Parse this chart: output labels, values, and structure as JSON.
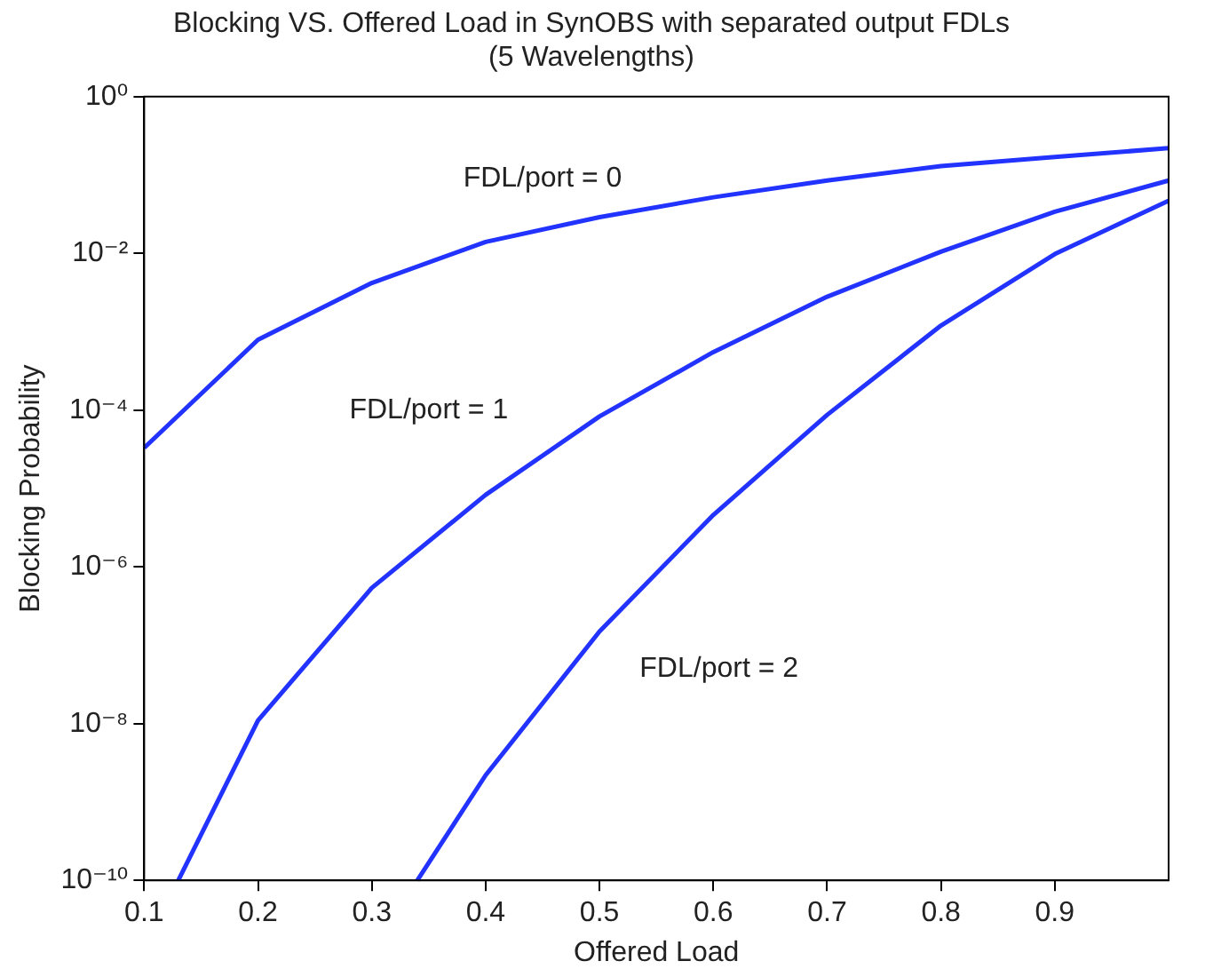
{
  "chart_data": {
    "type": "line",
    "title": "Blocking VS. Offered Load in SynOBS with separated output FDLs",
    "subtitle": "(5 Wavelengths)",
    "xlabel": "Offered Load",
    "ylabel": "Blocking Probability",
    "log": "y",
    "grid": false,
    "legend": false,
    "marker": "none",
    "line_style": "solid",
    "xlim": [
      0.1,
      1
    ],
    "xticks": [
      0.1,
      0.2,
      0.3,
      0.4,
      0.5,
      0.6,
      0.7,
      0.8,
      0.9
    ],
    "ylim": [
      1e-10,
      1
    ],
    "yticks": [
      {
        "value": 1,
        "label": "10⁰"
      },
      {
        "value": 0.01,
        "label": "10⁻²"
      },
      {
        "value": 0.0001,
        "label": "10⁻⁴"
      },
      {
        "value": 1e-06,
        "label": "10⁻⁶"
      },
      {
        "value": 1e-08,
        "label": "10⁻⁸"
      },
      {
        "value": 1e-10,
        "label": "10⁻¹⁰"
      }
    ],
    "series": [
      {
        "name": "FDL/port = 0",
        "color": "#2233ff",
        "x": [
          0.1,
          0.2,
          0.3,
          0.4,
          0.5,
          0.6,
          0.7,
          0.8,
          0.9,
          1
        ],
        "values": [
          3.3e-05,
          0.00079,
          0.0042,
          0.014,
          0.029,
          0.052,
          0.085,
          0.13,
          0.17,
          0.22
        ]
      },
      {
        "name": "FDL/port = 1",
        "color": "#2233ff",
        "x": [
          0.13,
          0.2,
          0.3,
          0.4,
          0.5,
          0.6,
          0.7,
          0.8,
          0.9,
          1
        ],
        "values": [
          1e-10,
          1.1e-08,
          5.4e-07,
          8.3e-06,
          8.3e-05,
          0.00055,
          0.0028,
          0.0105,
          0.034,
          0.085
        ]
      },
      {
        "name": "FDL/port = 2",
        "color": "#2233ff",
        "x": [
          0.34,
          0.4,
          0.5,
          0.6,
          0.7,
          0.8,
          0.9,
          1
        ],
        "values": [
          1e-10,
          2.2e-09,
          1.5e-07,
          4.6e-06,
          8.7e-05,
          0.0012,
          0.0098,
          0.047
        ]
      }
    ]
  }
}
